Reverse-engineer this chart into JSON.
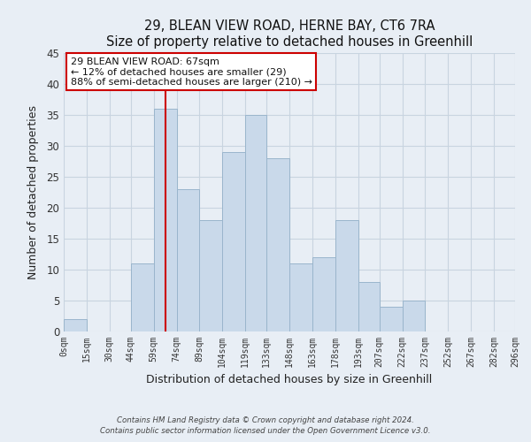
{
  "title": "29, BLEAN VIEW ROAD, HERNE BAY, CT6 7RA",
  "subtitle": "Size of property relative to detached houses in Greenhill",
  "xlabel": "Distribution of detached houses by size in Greenhill",
  "ylabel": "Number of detached properties",
  "bin_edges": [
    0,
    15,
    30,
    44,
    59,
    74,
    89,
    104,
    119,
    133,
    148,
    163,
    178,
    193,
    207,
    222,
    237,
    252,
    267,
    282,
    296
  ],
  "bar_heights": [
    2,
    0,
    0,
    11,
    36,
    23,
    18,
    29,
    35,
    28,
    11,
    12,
    18,
    8,
    4,
    5,
    0,
    0,
    0,
    0
  ],
  "bar_color": "#c9d9ea",
  "bar_edge_color": "#9ab5cc",
  "vline_x": 67,
  "vline_color": "#cc0000",
  "ylim": [
    0,
    45
  ],
  "yticks": [
    0,
    5,
    10,
    15,
    20,
    25,
    30,
    35,
    40,
    45
  ],
  "xtick_labels": [
    "0sqm",
    "15sqm",
    "30sqm",
    "44sqm",
    "59sqm",
    "74sqm",
    "89sqm",
    "104sqm",
    "119sqm",
    "133sqm",
    "148sqm",
    "163sqm",
    "178sqm",
    "193sqm",
    "207sqm",
    "222sqm",
    "237sqm",
    "252sqm",
    "267sqm",
    "282sqm",
    "296sqm"
  ],
  "annotation_title": "29 BLEAN VIEW ROAD: 67sqm",
  "annotation_line1": "← 12% of detached houses are smaller (29)",
  "annotation_line2": "88% of semi-detached houses are larger (210) →",
  "annotation_box_color": "#ffffff",
  "annotation_box_edge_color": "#cc0000",
  "grid_color": "#c8d4e0",
  "bg_color": "#e8eef5",
  "footer1": "Contains HM Land Registry data © Crown copyright and database right 2024.",
  "footer2": "Contains public sector information licensed under the Open Government Licence v3.0."
}
